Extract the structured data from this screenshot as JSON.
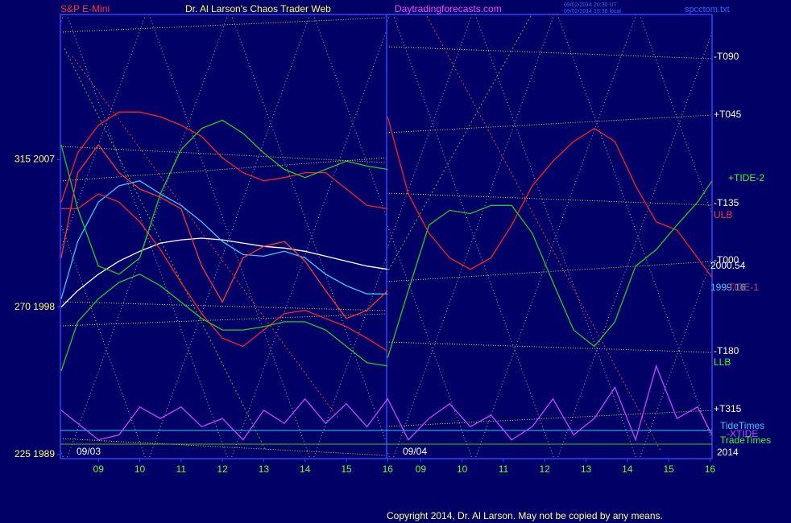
{
  "chart_data": {
    "type": "line",
    "symbol": "S&P E-Mini",
    "title": "Dr. Al Larson's Chaos Trader Web",
    "website": "Daytradingforecasts.com",
    "timestamps": [
      "09/02/2014 20:30 UT",
      "09/02/2014 15:30 local"
    ],
    "filename": "spcctom.txt",
    "dates": [
      "09/03",
      "09/04"
    ],
    "year": "2014",
    "copyright": "Copyright 2014, Dr. Al Larson. May not be copied by any means.",
    "annotations": [
      "-T090",
      "+T045",
      "+TIDE-2",
      "-T135",
      "ULB",
      "-T000",
      "2000.54",
      "1999.16",
      "-TIDE-1",
      "-T180",
      "LLB",
      "+T315",
      "TideTimes",
      "-XTIDE",
      "TradeTimes"
    ],
    "xlim": [
      8.08,
      23.85
    ],
    "ylim": [
      1988.75,
      2015.85
    ],
    "xticks": [
      {
        "value": 9,
        "label": "09"
      },
      10,
      11,
      12,
      13,
      14,
      15,
      16,
      {
        "value": 16.8,
        "label": "09"
      },
      {
        "value": 17.8,
        "label": "10"
      },
      {
        "value": 18.8,
        "label": "11"
      },
      {
        "value": 19.8,
        "label": "12"
      },
      {
        "value": 20.8,
        "label": "13"
      },
      {
        "value": 21.8,
        "label": "14"
      },
      {
        "value": 22.8,
        "label": "15"
      },
      {
        "value": 23.8,
        "label": "16"
      }
    ],
    "yticks": [
      {
        "value": 2007,
        "label": "315  2007"
      },
      {
        "value": 1998,
        "label": "270  1998"
      },
      {
        "value": 1989,
        "label": "225  1989"
      }
    ],
    "x": [
      8.1,
      8.5,
      9,
      9.5,
      10,
      10.5,
      11,
      11.5,
      12,
      12.5,
      13,
      13.5,
      14,
      14.5,
      15,
      15.5,
      16,
      16.5,
      17,
      17.5,
      18,
      18.5,
      19,
      19.5,
      20,
      20.5,
      21,
      21.5,
      22,
      22.5,
      23,
      23.5,
      23.85
    ],
    "series": [
      {
        "color": "#ffffff",
        "values": [
          1998.0,
          1999.0,
          2000.0,
          2000.8,
          2001.4,
          2001.9,
          2002.1,
          2002.2,
          2002.1,
          2001.9,
          2001.7,
          2001.6,
          2001.4,
          2001.1,
          2000.8,
          2000.5,
          2000.3,
          null,
          null,
          null,
          null,
          null,
          null,
          null,
          null,
          null,
          null,
          null,
          null,
          null,
          null,
          null,
          null
        ]
      },
      {
        "color": "#33ccff",
        "values": [
          1998.5,
          2002.0,
          2004.4,
          2005.4,
          2005.7,
          2004.9,
          2004.2,
          2003.2,
          2002.0,
          2001.2,
          2001.1,
          2001.4,
          2001.0,
          2000.0,
          1999.3,
          1998.8,
          1998.8,
          null,
          null,
          null,
          null,
          null,
          null,
          null,
          null,
          null,
          null,
          null,
          null,
          null,
          null,
          null,
          null
        ]
      },
      {
        "color": "#ff2020",
        "values": [
          2004.4,
          2007.4,
          2009.1,
          2009.9,
          2009.9,
          2009.6,
          2009.1,
          2008.4,
          2007.1,
          2006.2,
          2005.7,
          2005.9,
          2006.2,
          2006.2,
          2005.2,
          2004.2,
          2004.0,
          null,
          null,
          null,
          null,
          null,
          null,
          null,
          null,
          null,
          null,
          null,
          null,
          null,
          null,
          null,
          null
        ]
      },
      {
        "color": "#ff2020",
        "values": [
          2004.0,
          2004.0,
          2004.9,
          2004.4,
          2003.2,
          2001.5,
          1999.5,
          1997.6,
          1996.1,
          1995.6,
          1996.6,
          1997.6,
          1997.8,
          1997.3,
          1996.8,
          1996.1,
          1995.3,
          null,
          null,
          null,
          null,
          null,
          null,
          null,
          null,
          null,
          null,
          null,
          null,
          null,
          null,
          null,
          null
        ]
      },
      {
        "color": "#22cc22",
        "values": [
          2007.9,
          2004.0,
          2000.5,
          2000.0,
          2001.0,
          2004.9,
          2007.6,
          2008.9,
          2009.4,
          2008.6,
          2007.4,
          2006.4,
          2005.9,
          2006.4,
          2006.9,
          2006.6,
          2006.4,
          null,
          null,
          null,
          null,
          null,
          null,
          null,
          null,
          null,
          null,
          null,
          null,
          null,
          null,
          null,
          null
        ]
      },
      {
        "color": "#22cc22",
        "values": [
          1994.1,
          1997.1,
          1998.5,
          1999.5,
          2000.0,
          1999.3,
          1998.3,
          1997.3,
          1996.6,
          1996.6,
          1996.8,
          1997.1,
          1997.1,
          1996.6,
          1995.6,
          1994.6,
          1994.4,
          null,
          null,
          null,
          null,
          null,
          null,
          null,
          null,
          null,
          null,
          null,
          null,
          null,
          null,
          null,
          null
        ]
      },
      {
        "color": "#ff2020",
        "values": [
          null,
          null,
          null,
          null,
          null,
          null,
          null,
          null,
          null,
          null,
          null,
          null,
          null,
          null,
          null,
          null,
          2009.6,
          2004.9,
          2002.5,
          2001.0,
          2000.3,
          2001.0,
          2003.0,
          2005.4,
          2006.9,
          2008.1,
          2008.9,
          2008.1,
          2005.4,
          2003.2,
          2002.7,
          2001.0,
          1999.8
        ]
      },
      {
        "color": "#22cc22",
        "values": [
          null,
          null,
          null,
          null,
          null,
          null,
          null,
          null,
          null,
          null,
          null,
          null,
          null,
          null,
          null,
          null,
          1994.9,
          1999.0,
          2003.0,
          2003.9,
          2003.7,
          2004.2,
          2004.2,
          2002.5,
          1999.5,
          1996.6,
          1995.6,
          1997.1,
          2000.5,
          2001.5,
          2003.0,
          2004.4,
          2005.7
        ]
      },
      {
        "color": "#cc44ff",
        "values": [
          1991.7,
          1990.9,
          1989.9,
          1990.2,
          1991.9,
          1991.2,
          1991.9,
          1990.7,
          1991.2,
          1989.9,
          1991.7,
          1990.9,
          1992.4,
          1990.9,
          1992.1,
          1990.7,
          1992.4,
          1989.9,
          1991.2,
          1992.1,
          1990.7,
          1991.4,
          1989.9,
          1990.7,
          1992.4,
          1990.2,
          1991.2,
          1993.1,
          1989.9,
          1994.4,
          1991.2,
          1991.9,
          1990.2
        ]
      },
      {
        "color": "#ff3333",
        "values": [
          2001.0,
          2006.2,
          2007.9,
          2006.2,
          2005.2,
          2004.7,
          2004.0,
          2000.5,
          1998.3,
          2001.0,
          2001.7,
          2002.0,
          2000.8,
          1999.0,
          1997.3,
          1997.8,
          1999.0,
          null,
          null,
          null,
          null,
          null,
          null,
          null,
          null,
          null,
          null,
          null,
          null,
          null,
          null,
          null,
          null
        ]
      }
    ]
  }
}
